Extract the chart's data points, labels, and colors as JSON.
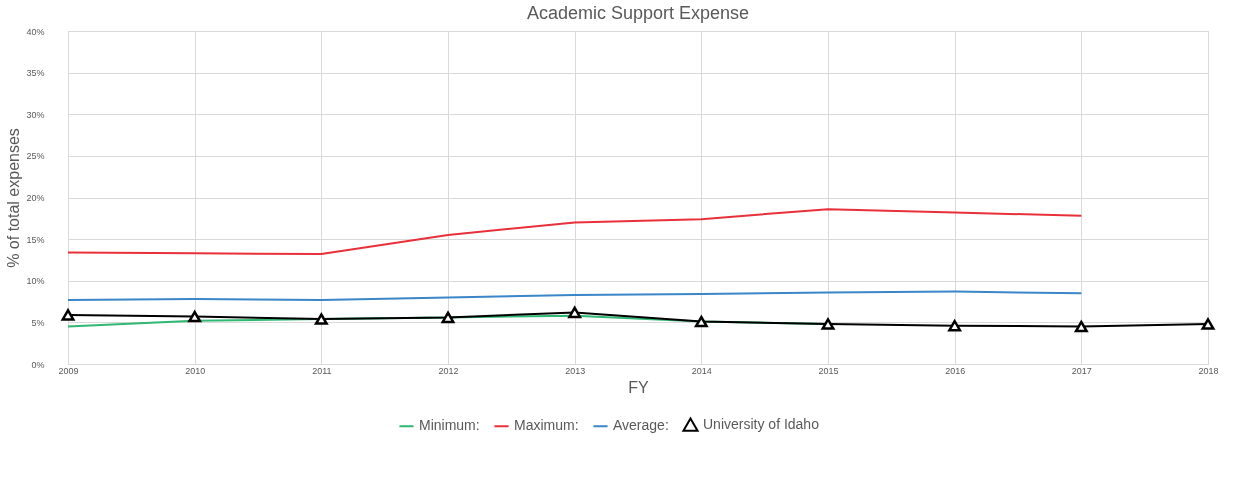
{
  "chart_data": {
    "type": "line",
    "title": "Academic Support Expense",
    "xlabel": "FY",
    "ylabel": "% of total expenses",
    "x": [
      2009,
      2010,
      2011,
      2012,
      2013,
      2014,
      2015,
      2016,
      2017,
      2018
    ],
    "xlim": [
      2009,
      2018
    ],
    "xticks": [
      2009,
      2010,
      2011,
      2012,
      2013,
      2014,
      2015,
      2016,
      2017,
      2018
    ],
    "ylim": [
      0,
      40
    ],
    "yticks": [
      {
        "value": 0,
        "label": "0%"
      },
      {
        "value": 5,
        "label": "5%"
      },
      {
        "value": 10,
        "label": "10%"
      },
      {
        "value": 15,
        "label": "15%"
      },
      {
        "value": 20,
        "label": "20%"
      },
      {
        "value": 25,
        "label": "25%"
      },
      {
        "value": 30,
        "label": "30%"
      },
      {
        "value": 35,
        "label": "35%"
      },
      {
        "value": 40,
        "label": "40%"
      }
    ],
    "grid": true,
    "legend": "bottom",
    "series": [
      {
        "name": "Minimum:",
        "color": "#2eb872",
        "marker": "none",
        "values": [
          4.5,
          5.2,
          5.4,
          5.6,
          5.8,
          5.1,
          4.8,
          null,
          null,
          null
        ]
      },
      {
        "name": "Maximum:",
        "color": "#e8303a",
        "marker": "none",
        "values": [
          13.4,
          13.3,
          13.2,
          15.5,
          17.0,
          17.4,
          18.6,
          18.2,
          17.8,
          null
        ]
      },
      {
        "name": "Average:",
        "color": "#3a86c8",
        "marker": "none",
        "values": [
          7.7,
          7.8,
          7.7,
          8.0,
          8.3,
          8.4,
          8.6,
          8.7,
          8.5,
          null
        ]
      },
      {
        "name": "University of Idaho",
        "color": "#000000",
        "marker": "triangle",
        "values": [
          5.9,
          5.7,
          5.4,
          5.6,
          6.2,
          5.1,
          4.8,
          4.6,
          4.5,
          4.8
        ]
      }
    ]
  }
}
